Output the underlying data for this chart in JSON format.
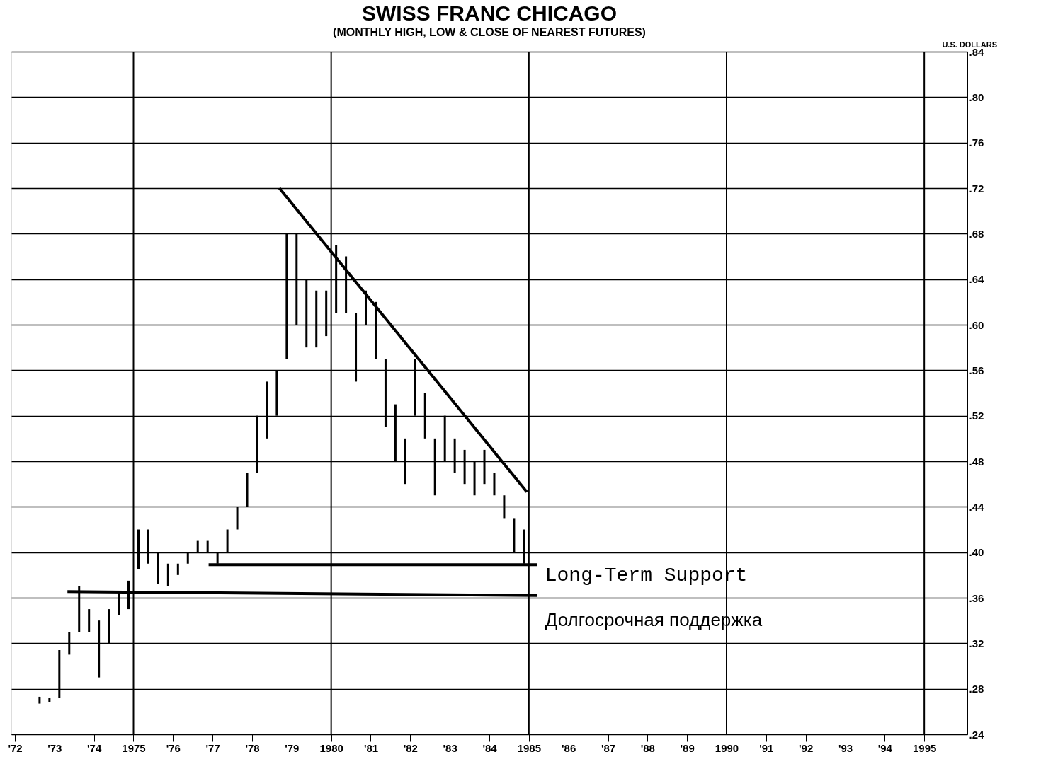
{
  "chart_data": {
    "type": "bar",
    "title": "SWISS FRANC     CHICAGO",
    "subtitle": "(MONTHLY HIGH, LOW & CLOSE OF NEAREST FUTURES)",
    "ylabel": "U.S. DOLLARS",
    "xlim": [
      1972,
      1996
    ],
    "ylim": [
      0.24,
      0.84
    ],
    "xticks": [
      {
        "value": 1972,
        "label": "'72"
      },
      {
        "value": 1973,
        "label": "'73"
      },
      {
        "value": 1974,
        "label": "'74"
      },
      1975,
      {
        "value": 1976,
        "label": "'76"
      },
      {
        "value": 1977,
        "label": "'77"
      },
      {
        "value": 1978,
        "label": "'78"
      },
      {
        "value": 1979,
        "label": "'79"
      },
      1980,
      {
        "value": 1981,
        "label": "'81"
      },
      {
        "value": 1982,
        "label": "'82"
      },
      {
        "value": 1983,
        "label": "'83"
      },
      {
        "value": 1984,
        "label": "'84"
      },
      1985,
      {
        "value": 1986,
        "label": "'86"
      },
      {
        "value": 1987,
        "label": "'87"
      },
      {
        "value": 1988,
        "label": "'88"
      },
      {
        "value": 1989,
        "label": "'89"
      },
      1990,
      {
        "value": 1991,
        "label": "'91"
      },
      {
        "value": 1992,
        "label": "'92"
      },
      {
        "value": 1993,
        "label": "'93"
      },
      {
        "value": 1994,
        "label": "'94"
      },
      1995
    ],
    "ref_lines": [
      {
        "axis": "x",
        "value": 1975,
        "color": "#000000"
      },
      {
        "axis": "x",
        "value": 1980,
        "color": "#000000"
      },
      {
        "axis": "x",
        "value": 1985,
        "color": "#000000"
      },
      {
        "axis": "x",
        "value": 1990,
        "color": "#000000"
      },
      {
        "axis": "x",
        "value": 1995,
        "color": "#000000"
      }
    ],
    "yticks": [
      {
        "value": 0.24,
        "label": ".24"
      },
      {
        "value": 0.28,
        "label": ".28"
      },
      {
        "value": 0.32,
        "label": ".32"
      },
      {
        "value": 0.36,
        "label": ".36"
      },
      {
        "value": 0.4,
        "label": ".40"
      },
      {
        "value": 0.44,
        "label": ".44"
      },
      {
        "value": 0.48,
        "label": ".48"
      },
      {
        "value": 0.52,
        "label": ".52"
      },
      {
        "value": 0.56,
        "label": ".56"
      },
      {
        "value": 0.6,
        "label": ".60"
      },
      {
        "value": 0.64,
        "label": ".64"
      },
      {
        "value": 0.68,
        "label": ".68"
      },
      {
        "value": 0.72,
        "label": ".72"
      },
      {
        "value": 0.76,
        "label": ".76"
      },
      {
        "value": 0.8,
        "label": ".80"
      },
      {
        "value": 0.84,
        "label": ".84"
      }
    ],
    "grid": "y",
    "series": [
      {
        "color": "#000000",
        "x": [
          1972.625,
          1972.875,
          1973.125,
          1973.375,
          1973.625,
          1973.875,
          1974.125,
          1974.375,
          1974.625,
          1974.875,
          1975.125,
          1975.375,
          1975.625,
          1975.875,
          1976.125,
          1976.375,
          1976.625,
          1976.875,
          1977.125,
          1977.375,
          1977.625,
          1977.875,
          1978.125,
          1978.375,
          1978.625,
          1978.875,
          1979.125,
          1979.375,
          1979.625,
          1979.875,
          1980.125,
          1980.375,
          1980.625,
          1980.875,
          1981.125,
          1981.375,
          1981.625,
          1981.875,
          1982.125,
          1982.375,
          1982.625,
          1982.875,
          1983.125,
          1983.375,
          1983.625,
          1983.875,
          1984.125,
          1984.375,
          1984.625,
          1984.875
        ],
        "base": [
          0.267,
          0.268,
          0.272,
          0.31,
          0.33,
          0.33,
          0.29,
          0.32,
          0.345,
          0.35,
          0.385,
          0.39,
          0.372,
          0.37,
          0.38,
          0.39,
          0.4,
          0.4,
          0.39,
          0.4,
          0.42,
          0.44,
          0.47,
          0.5,
          0.52,
          0.57,
          0.6,
          0.58,
          0.58,
          0.59,
          0.61,
          0.61,
          0.55,
          0.6,
          0.57,
          0.51,
          0.48,
          0.46,
          0.52,
          0.5,
          0.45,
          0.48,
          0.47,
          0.46,
          0.45,
          0.46,
          0.45,
          0.43,
          0.4,
          0.39
        ],
        "values": [
          0.006,
          0.004,
          0.042,
          0.02,
          0.04,
          0.02,
          0.05,
          0.03,
          0.02,
          0.025,
          0.035,
          0.03,
          0.028,
          0.02,
          0.01,
          0.01,
          0.01,
          0.01,
          0.01,
          0.02,
          0.02,
          0.03,
          0.05,
          0.05,
          0.04,
          0.11,
          0.08,
          0.06,
          0.05,
          0.04,
          0.06,
          0.05,
          0.06,
          0.03,
          0.05,
          0.06,
          0.05,
          0.04,
          0.05,
          0.04,
          0.05,
          0.04,
          0.03,
          0.03,
          0.03,
          0.03,
          0.02,
          0.02,
          0.03,
          0.03
        ]
      },
      {
        "type": "line",
        "color": "#000000",
        "x": [
          1978.69,
          1984.95
        ],
        "values": [
          0.72,
          0.453
        ]
      },
      {
        "type": "line",
        "color": "#000000",
        "x": [
          1976.9,
          1985.2
        ],
        "values": [
          0.389,
          0.389
        ]
      },
      {
        "type": "line",
        "color": "#000000",
        "x": [
          1973.33,
          1985.2
        ],
        "values": [
          0.3654,
          0.362
        ]
      }
    ],
    "annotations": [
      "Long-Term Support",
      "Долгосрочная поддержка"
    ]
  }
}
